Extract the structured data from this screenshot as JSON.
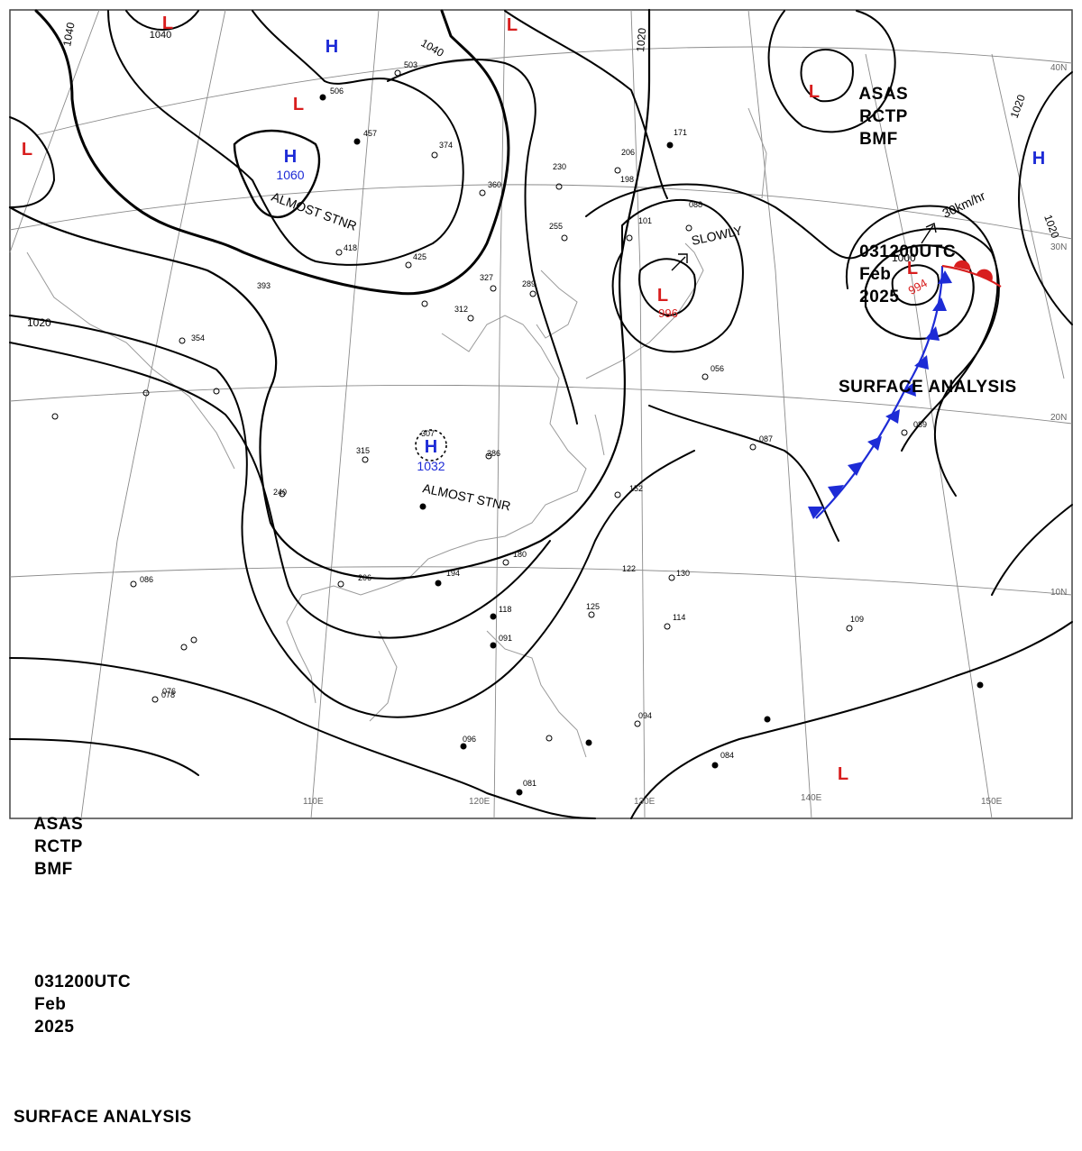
{
  "header": {
    "agency": [
      "ASAS",
      "RCTP",
      "BMF"
    ],
    "timestamp": [
      "031200UTC",
      "Feb",
      "2025"
    ],
    "product": "SURFACE ANALYSIS"
  },
  "pressure_centers": [
    {
      "type": "H",
      "value": "1060",
      "color": "#1d2bd6"
    },
    {
      "type": "H",
      "value": "1032",
      "color": "#1d2bd6"
    },
    {
      "type": "H",
      "value": "",
      "color": "#1d2bd6"
    },
    {
      "type": "H",
      "value": "",
      "color": "#1d2bd6"
    },
    {
      "type": "L",
      "value": "996",
      "color": "#d81e1e"
    },
    {
      "type": "L",
      "value": "994",
      "color": "#d81e1e"
    },
    {
      "type": "L",
      "value": "",
      "color": "#d81e1e"
    },
    {
      "type": "L",
      "value": "1040",
      "color": "#d81e1e"
    },
    {
      "type": "L",
      "value": "",
      "color": "#d81e1e"
    },
    {
      "type": "L",
      "value": "",
      "color": "#d81e1e"
    },
    {
      "type": "L",
      "value": "",
      "color": "#d81e1e"
    },
    {
      "type": "L",
      "value": "",
      "color": "#d81e1e"
    }
  ],
  "isobar_labels": [
    "1040",
    "1040",
    "1020",
    "1020",
    "1000",
    "1020",
    "1020"
  ],
  "annotations": [
    "ALMOST STNR",
    "ALMOST STNR",
    "SLOWLY",
    "30km/hr"
  ],
  "longitude_labels": [
    "110E",
    "120E",
    "130E",
    "140E",
    "150E"
  ],
  "latitude_labels": [
    "40N",
    "30N",
    "20N",
    "10N"
  ],
  "station_samples": [
    "503",
    "506",
    "457",
    "374",
    "360",
    "418",
    "425",
    "393",
    "354",
    "312",
    "327",
    "289",
    "255",
    "230",
    "198",
    "206",
    "171",
    "101",
    "088",
    "056",
    "087",
    "089",
    "307",
    "286",
    "315",
    "240",
    "206",
    "194",
    "180",
    "152",
    "130",
    "122",
    "125",
    "118",
    "114",
    "109",
    "091",
    "086",
    "078",
    "096",
    "094",
    "084",
    "081",
    "076"
  ],
  "colors": {
    "high": "#1d2bd6",
    "low": "#d81e1e",
    "cold_front": "#1d2bd6",
    "warm_front": "#d81e1e",
    "isobar": "#000000",
    "grid": "#8a8a8a",
    "coast": "#8a8a8a"
  }
}
